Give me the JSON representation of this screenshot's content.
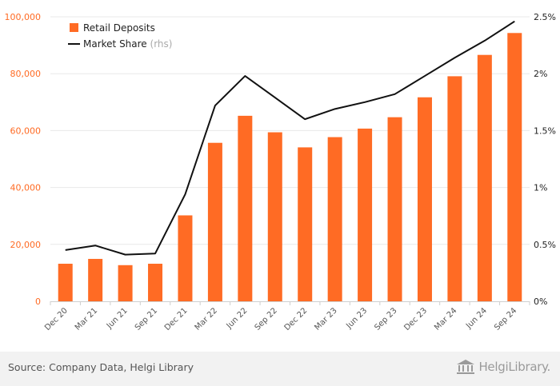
{
  "chart_data": {
    "type": "bar",
    "categories": [
      "Dec 20",
      "Mar 21",
      "Jun 21",
      "Sep 21",
      "Dec 21",
      "Mar 22",
      "Jun 22",
      "Sep 22",
      "Dec 22",
      "Mar 23",
      "Jun 23",
      "Sep 23",
      "Dec 23",
      "Mar 24",
      "Jun 24",
      "Sep 24"
    ],
    "series": [
      {
        "name": "Retail Deposits",
        "type": "bar",
        "axis": "left",
        "values": [
          13200,
          14900,
          12700,
          13200,
          30200,
          55700,
          65200,
          59400,
          54100,
          57700,
          60700,
          64700,
          71700,
          79100,
          86600,
          94300
        ]
      },
      {
        "name": "Market Share",
        "name_suffix": "(rhs)",
        "type": "line",
        "axis": "right",
        "unit": "%",
        "values": [
          0.45,
          0.49,
          0.41,
          0.42,
          0.94,
          1.72,
          1.98,
          1.79,
          1.6,
          1.69,
          1.75,
          1.82,
          1.98,
          2.14,
          2.29,
          2.46
        ]
      }
    ],
    "y_left": {
      "ylim": [
        0,
        100000
      ],
      "ticks": [
        "0",
        "20,000",
        "40,000",
        "60,000",
        "80,000",
        "100,000"
      ],
      "tick_values": [
        0,
        20000,
        40000,
        60000,
        80000,
        100000
      ]
    },
    "y_right": {
      "ylim": [
        0,
        2.5
      ],
      "ticks": [
        "0%",
        "0.5%",
        "1%",
        "1.5%",
        "2%",
        "2.5%"
      ],
      "tick_values": [
        0,
        0.5,
        1,
        1.5,
        2,
        2.5
      ]
    },
    "grid": true,
    "legend_position": "top-left",
    "colors": {
      "bar": "#ff6b24",
      "line": "#111111",
      "left_axis_text": "#ff6b24",
      "grid": "#e8e8e8"
    }
  },
  "footer": {
    "source": "Source: Company Data, Helgi Library",
    "logo_text": "HelgiLibrary."
  },
  "icons": {
    "logo": "library-building-icon"
  }
}
